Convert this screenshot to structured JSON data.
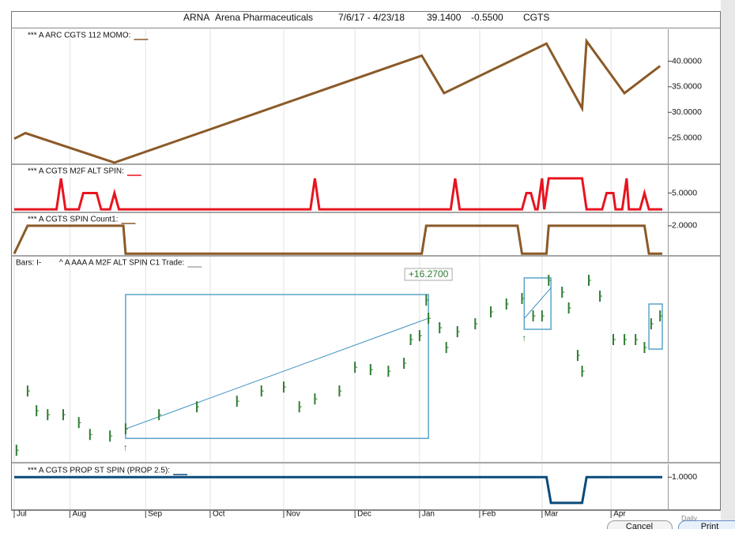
{
  "header": {
    "symbol": "ARNA",
    "company": "Arena Pharmaceuticals",
    "range": "7/6/17 - 4/23/18",
    "last": "39.1400",
    "change": "-0.5500",
    "study": "CGTS"
  },
  "time_axis": {
    "xlim": [
      0,
      291
    ],
    "xticks": [
      {
        "value": 0,
        "label": "Jul"
      },
      {
        "value": 25,
        "label": "Aug"
      },
      {
        "value": 59,
        "label": "Sep"
      },
      {
        "value": 88,
        "label": "Oct"
      },
      {
        "value": 121,
        "label": "Nov"
      },
      {
        "value": 153,
        "label": "Dec"
      },
      {
        "value": 182,
        "label": "Jan"
      },
      {
        "value": 209,
        "label": "Feb"
      },
      {
        "value": 237,
        "label": "Mar"
      },
      {
        "value": 268,
        "label": "Apr"
      }
    ]
  },
  "chart_data": [
    {
      "type": "line",
      "ylim": [
        20,
        46.25
      ],
      "yticks": [
        {
          "value": 40,
          "label": "40.0000"
        },
        {
          "value": 35,
          "label": "35.0000"
        },
        {
          "value": 30,
          "label": "30.0000"
        },
        {
          "value": 25,
          "label": "25.0000"
        }
      ],
      "series": [
        {
          "name": "*** A ARC CGTS 112 MOMO:",
          "color": "#8b5a28",
          "x": [
            0,
            5,
            45,
            183,
            193,
            239,
            255,
            257,
            274,
            290
          ],
          "values": [
            24.84,
            25.94,
            20.16,
            41.09,
            33.75,
            43.44,
            30.78,
            43.91,
            33.75,
            39.06
          ]
        }
      ]
    },
    {
      "type": "line",
      "ylim": [
        -0.7,
        13.6
      ],
      "yticks": [
        {
          "value": 5,
          "label": "5.0000"
        }
      ],
      "series": [
        {
          "name": "*** A CGTS M2F ALT SPIN:",
          "color": "#e8141e",
          "x": [
            0,
            19,
            21,
            23,
            29,
            31,
            37,
            39,
            43,
            45,
            47,
            133,
            135,
            137,
            196,
            198,
            200,
            228,
            230,
            232,
            234,
            235,
            237,
            238,
            240,
            255,
            257,
            264,
            266,
            269,
            270,
            273,
            275,
            276,
            281,
            283,
            285,
            291
          ],
          "values": [
            0,
            0,
            9.5,
            0,
            0,
            5,
            5,
            0,
            0,
            5,
            0,
            0,
            9.5,
            0,
            0,
            9.5,
            0,
            0,
            5,
            5,
            0,
            0,
            9.5,
            0,
            9.5,
            9.5,
            0,
            0,
            5,
            5,
            0,
            0,
            9.5,
            0,
            0,
            5,
            0,
            0
          ]
        }
      ]
    },
    {
      "type": "line",
      "ylim": [
        -0.1,
        2.9
      ],
      "yticks": [
        {
          "value": 2,
          "label": "2.0000"
        }
      ],
      "series": [
        {
          "name": "*** A CGTS SPIN Count1:",
          "color": "#8b5a28",
          "x": [
            0,
            6,
            49,
            50,
            183,
            185,
            226,
            228,
            239,
            240,
            283,
            285,
            291
          ],
          "values": [
            0,
            2,
            2,
            0,
            0,
            2,
            2,
            0,
            0,
            2,
            2,
            0,
            0
          ]
        }
      ]
    },
    {
      "type": "price",
      "ylim": [
        19.4,
        49.6
      ],
      "bars_label": "Bars: I-",
      "series": [
        {
          "name": "^ A AAA A M2F ALT SPIN C1 Trade:",
          "color": "#2e7d32",
          "x": [
            1,
            6,
            10,
            15,
            22,
            29,
            34,
            43,
            50,
            65,
            82,
            100,
            111,
            121,
            128,
            135,
            146,
            153,
            160,
            168,
            175,
            178,
            182,
            185,
            186,
            191,
            194,
            199,
            207,
            214,
            221,
            228,
            233,
            237,
            240,
            246,
            249,
            253,
            255,
            258,
            263,
            269,
            274,
            279,
            283,
            286,
            290
          ],
          "values": [
            21.12,
            29.84,
            26.93,
            26.35,
            26.35,
            25.19,
            23.44,
            23.21,
            24.26,
            26.35,
            27.51,
            28.33,
            29.84,
            30.42,
            27.51,
            28.67,
            29.84,
            33.33,
            32.98,
            32.74,
            33.91,
            37.4,
            37.98,
            43.21,
            40.53,
            39.14,
            36.23,
            38.56,
            39.72,
            41.47,
            42.63,
            43.44,
            40.88,
            40.88,
            46.12,
            44.37,
            42.05,
            35.07,
            32.74,
            46.12,
            43.79,
            37.4,
            37.4,
            37.4,
            36.23,
            39.72,
            40.88
          ]
        }
      ],
      "trades": [
        {
          "x": [
            50,
            186
          ],
          "y": [
            22.86,
            44.02
          ],
          "line": [
            24.26,
            40.53
          ],
          "label": "+16.2700"
        },
        {
          "x": [
            229,
            241
          ],
          "y": [
            38.91,
            46.47
          ],
          "line": [
            40.5,
            45
          ]
        },
        {
          "x": [
            285,
            291
          ],
          "y": [
            36,
            42.63
          ]
        }
      ]
    },
    {
      "type": "line",
      "ylim": [
        -1.5,
        2
      ],
      "yticks": [
        {
          "value": 1,
          "label": "1.0000"
        }
      ],
      "series": [
        {
          "name": "*** A CGTS PROP ST SPIN (PROP 2.5):",
          "color": "#0b4a7a",
          "x": [
            0,
            239,
            241,
            255,
            257,
            291
          ],
          "values": [
            1,
            1,
            -1,
            -1,
            1,
            1
          ]
        }
      ]
    }
  ],
  "buttons": {
    "interval": "Daily",
    "cancel": "Cancel",
    "print": "Print"
  }
}
